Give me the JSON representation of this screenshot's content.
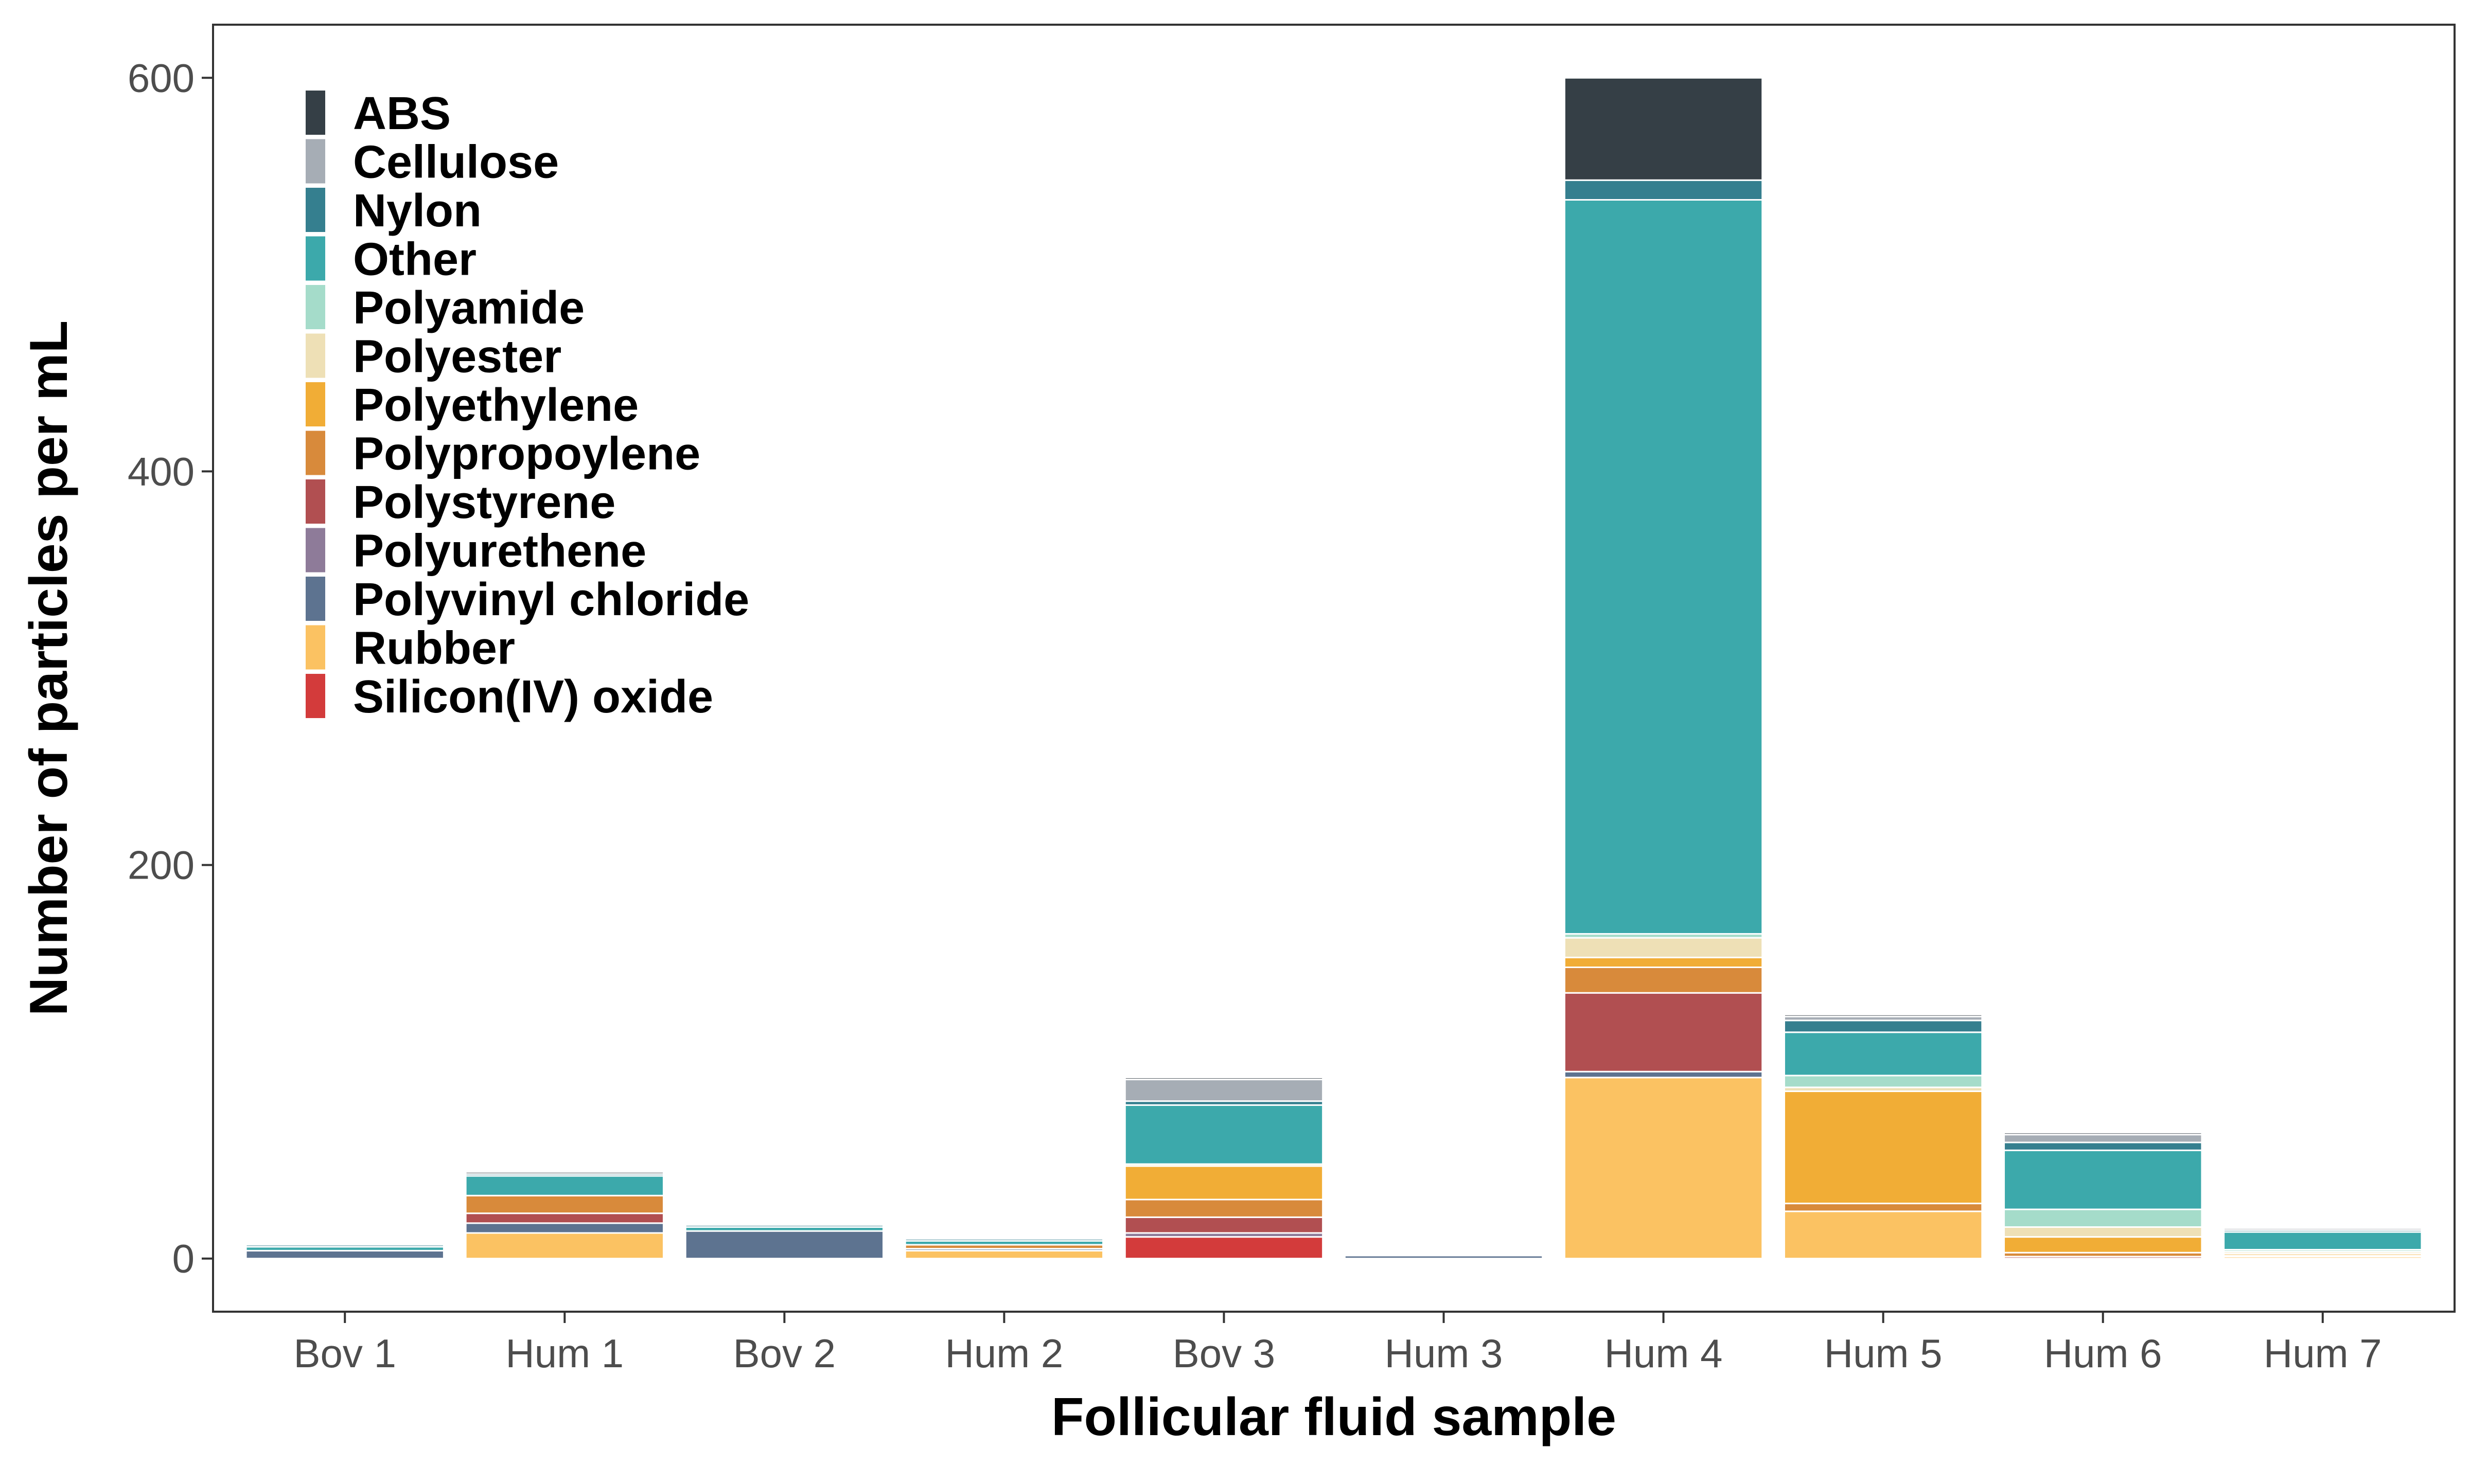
{
  "chart_data": {
    "type": "bar",
    "stacked": true,
    "xlabel": "Follicular fluid sample",
    "ylabel": "Number of particles per mL",
    "ylim": [
      0,
      600
    ],
    "yticks": [
      0,
      200,
      400,
      600
    ],
    "grid": false,
    "legend_position": "top-left",
    "categories": [
      "Bov 1",
      "Hum 1",
      "Bov 2",
      "Hum 2",
      "Bov 3",
      "Hum 3",
      "Hum 4",
      "Hum 5",
      "Hum 6",
      "Hum 7"
    ],
    "series": [
      {
        "name": "Silicon(IV) oxide",
        "color": "#d33b3b",
        "values": [
          0,
          0,
          0,
          0,
          11,
          0,
          0,
          0,
          0,
          0
        ]
      },
      {
        "name": "Rubber",
        "color": "#fbc262",
        "values": [
          0,
          13,
          0,
          4,
          0,
          0,
          92,
          24,
          0,
          1
        ]
      },
      {
        "name": "Polyvinyl chloride",
        "color": "#5d7390",
        "values": [
          4,
          5,
          14,
          1,
          0,
          1.5,
          3,
          0,
          0,
          0
        ]
      },
      {
        "name": "Polyurethene",
        "color": "#8e7b99",
        "values": [
          0,
          0,
          0,
          0,
          2,
          0,
          0,
          0,
          0,
          0
        ]
      },
      {
        "name": "Polystyrene",
        "color": "#b14f51",
        "values": [
          0,
          5,
          0,
          0,
          8,
          0,
          40,
          0,
          1,
          0
        ]
      },
      {
        "name": "Polypropoylene",
        "color": "#d88a3b",
        "values": [
          0,
          9,
          0,
          2,
          9,
          0,
          13,
          4,
          2,
          0.5
        ]
      },
      {
        "name": "Polyethylene",
        "color": "#f1ad36",
        "values": [
          0,
          0,
          0,
          0,
          17,
          0,
          5,
          57,
          8,
          1
        ]
      },
      {
        "name": "Polyester",
        "color": "#eee0b6",
        "values": [
          0,
          0,
          0,
          0,
          1,
          0,
          10,
          2,
          5,
          1
        ]
      },
      {
        "name": "Polyamide",
        "color": "#a5dcca",
        "values": [
          0,
          0,
          0,
          0,
          0,
          0,
          2,
          6,
          9,
          1
        ]
      },
      {
        "name": "Other",
        "color": "#3ca9ab",
        "values": [
          2,
          10,
          2,
          2,
          30,
          0,
          373,
          22,
          30,
          9
        ]
      },
      {
        "name": "Nylon",
        "color": "#357f8f",
        "values": [
          1,
          1,
          1,
          1,
          2,
          0,
          10,
          6,
          4,
          1
        ]
      },
      {
        "name": "Cellulose",
        "color": "#a6adb5",
        "values": [
          0,
          0,
          0,
          0,
          11,
          0,
          0,
          2,
          4,
          1
        ]
      },
      {
        "name": "ABS",
        "color": "#353f46",
        "values": [
          0,
          1,
          0,
          0,
          1,
          0,
          52,
          1,
          1,
          0.5
        ]
      }
    ],
    "legend_order": [
      "ABS",
      "Cellulose",
      "Nylon",
      "Other",
      "Polyamide",
      "Polyester",
      "Polyethylene",
      "Polypropoylene",
      "Polystyrene",
      "Polyurethene",
      "Polyvinyl chloride",
      "Rubber",
      "Silicon(IV) oxide"
    ]
  }
}
